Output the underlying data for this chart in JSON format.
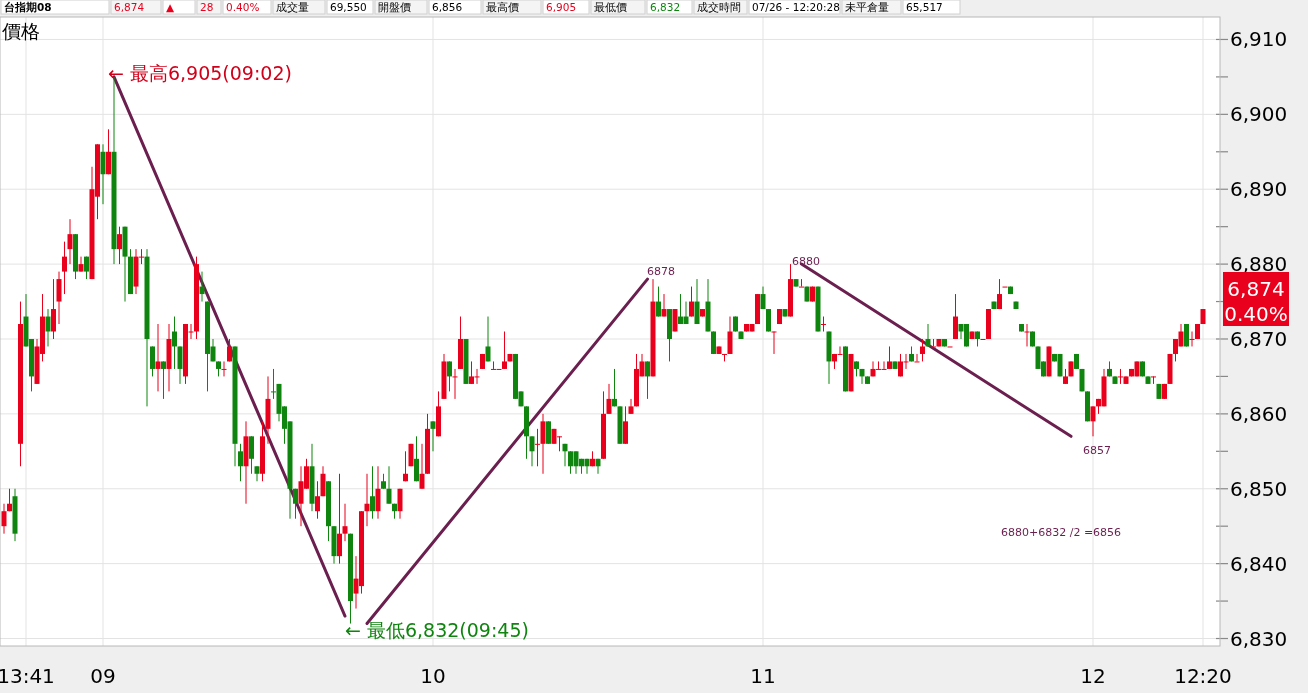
{
  "chart_data": {
    "type": "candlestick",
    "ylabel": "價格",
    "categories": [
      null,
      null,
      null,
      null,
      "13:41",
      null,
      null,
      null,
      null,
      null,
      null,
      null,
      null,
      null,
      null,
      null,
      null,
      null,
      "09",
      null,
      null,
      null,
      null,
      null,
      null,
      null,
      null,
      null,
      null,
      null,
      null,
      null,
      null,
      null,
      null,
      null,
      null,
      null,
      null,
      null,
      null,
      null,
      null,
      null,
      null,
      null,
      null,
      null,
      null,
      null,
      null,
      null,
      null,
      null,
      null,
      null,
      null,
      null,
      null,
      null,
      null,
      null,
      null,
      null,
      null,
      null,
      null,
      null,
      null,
      null,
      null,
      null,
      null,
      null,
      null,
      null,
      null,
      null,
      "10",
      null,
      null,
      null,
      null,
      null,
      null,
      null,
      null,
      null,
      null,
      null,
      null,
      null,
      null,
      null,
      null,
      null,
      null,
      null,
      null,
      null,
      null,
      null,
      null,
      null,
      null,
      null,
      null,
      null,
      null,
      null,
      null,
      null,
      null,
      null,
      null,
      null,
      null,
      null,
      null,
      null,
      null,
      null,
      null,
      null,
      null,
      null,
      null,
      null,
      null,
      null,
      null,
      null,
      null,
      null,
      null,
      null,
      null,
      null,
      "11",
      null,
      null,
      null,
      null,
      null,
      null,
      null,
      null,
      null,
      null,
      null,
      null,
      null,
      null,
      null,
      null,
      null,
      null,
      null,
      null,
      null,
      null,
      null,
      null,
      null,
      null,
      null,
      null,
      null,
      null,
      null,
      null,
      null,
      null,
      null,
      null,
      null,
      null,
      null,
      null,
      null,
      null,
      null,
      null,
      null,
      null,
      null,
      null,
      null,
      null,
      null,
      null,
      null,
      null,
      null,
      null,
      null,
      null,
      null,
      "12",
      null,
      null,
      null,
      null,
      null,
      null,
      null,
      null,
      null,
      null,
      null,
      null,
      null,
      null,
      null,
      null,
      null,
      null,
      null,
      "12:20"
    ],
    "ohlc": [
      [
        6845,
        6848,
        6844,
        6847
      ],
      [
        6847,
        6850,
        6847,
        6848
      ],
      [
        6849,
        6850,
        6843,
        6844
      ],
      [
        6856,
        6875,
        6853,
        6872
      ],
      [
        6873,
        6876,
        6869,
        6869
      ],
      [
        6870,
        6870,
        6863,
        6865
      ],
      [
        6864,
        6870,
        6864,
        6869
      ],
      [
        6868,
        6876,
        6867,
        6873
      ],
      [
        6873,
        6874,
        6869,
        6871
      ],
      [
        6871,
        6878,
        6870,
        6874
      ],
      [
        6875,
        6879,
        6872,
        6878
      ],
      [
        6879,
        6883,
        6876,
        6881
      ],
      [
        6882,
        6886,
        6880,
        6884
      ],
      [
        6884,
        6884,
        6878,
        6879
      ],
      [
        6879,
        6881,
        6879,
        6880
      ],
      [
        6881,
        6881,
        6878,
        6879
      ],
      [
        6878,
        6893,
        6878,
        6890
      ],
      [
        6889,
        6896,
        6886,
        6896
      ],
      [
        6895,
        6896,
        6888,
        6892
      ],
      [
        6892,
        6898,
        6892,
        6895
      ],
      [
        6895,
        6905,
        6880,
        6882
      ],
      [
        6882,
        6885,
        6880,
        6884
      ],
      [
        6885,
        6885,
        6875,
        6881
      ],
      [
        6881,
        6882,
        6876,
        6876
      ],
      [
        6877,
        6882,
        6876,
        6881
      ],
      [
        6881,
        6882,
        6880,
        6881
      ],
      [
        6881,
        6882,
        6861,
        6870
      ],
      [
        6869,
        6869,
        6865,
        6866
      ],
      [
        6866,
        6872,
        6863,
        6867
      ],
      [
        6867,
        6867,
        6862,
        6866
      ],
      [
        6866,
        6872,
        6863,
        6870
      ],
      [
        6871,
        6873,
        6866,
        6869
      ],
      [
        6869,
        6869,
        6864,
        6866
      ],
      [
        6865,
        6872,
        6864,
        6872
      ],
      [
        6871,
        6872,
        6870,
        6871
      ],
      [
        6871,
        6881,
        6870,
        6880
      ],
      [
        6877,
        6879,
        6875,
        6876
      ],
      [
        6875,
        6875,
        6863,
        6868
      ],
      [
        6869,
        6870,
        6867,
        6867
      ],
      [
        6867,
        6867,
        6865,
        6866
      ],
      [
        6866,
        6867,
        6865,
        6866
      ],
      [
        6867,
        6870,
        6867,
        6869
      ],
      [
        6869,
        6869,
        6853,
        6856
      ],
      [
        6855,
        6856,
        6851,
        6853
      ],
      [
        6853,
        6859,
        6848,
        6857
      ],
      [
        6857,
        6857,
        6852,
        6854
      ],
      [
        6853,
        6853,
        6851,
        6852
      ],
      [
        6852,
        6859,
        6851,
        6857
      ],
      [
        6858,
        6865,
        6856,
        6862
      ],
      [
        6863,
        6866,
        6862,
        6863
      ],
      [
        6864,
        6864,
        6859,
        6860
      ],
      [
        6861,
        6861,
        6856,
        6858
      ],
      [
        6859,
        6859,
        6846,
        6850
      ],
      [
        6850,
        6850,
        6846,
        6848
      ],
      [
        6848,
        6853,
        6845,
        6851
      ],
      [
        6850,
        6854,
        6850,
        6853
      ],
      [
        6853,
        6856,
        6847,
        6848
      ],
      [
        6847,
        6851,
        6846,
        6849
      ],
      [
        6849,
        6853,
        6849,
        6852
      ],
      [
        6851,
        6851,
        6843,
        6845
      ],
      [
        6845,
        6845,
        6840,
        6841
      ],
      [
        6841,
        6852,
        6840,
        6844
      ],
      [
        6844,
        6848,
        6843,
        6845
      ],
      [
        6844,
        6844,
        6832,
        6835
      ],
      [
        6836,
        6841,
        6834,
        6838
      ],
      [
        6837,
        6847,
        6836,
        6847
      ],
      [
        6847,
        6852,
        6845,
        6848
      ],
      [
        6849,
        6853,
        6846,
        6847
      ],
      [
        6847,
        6853,
        6846,
        6850
      ],
      [
        6851,
        6852,
        6850,
        6850
      ],
      [
        6850,
        6853,
        6848,
        6848
      ],
      [
        6848,
        6848,
        6846,
        6847
      ],
      [
        6847,
        6850,
        6846,
        6850
      ],
      [
        6851,
        6855,
        6851,
        6852
      ],
      [
        6853,
        6856,
        6853,
        6856
      ],
      [
        6854,
        6857,
        6851,
        6851
      ],
      [
        6850,
        6856,
        6850,
        6852
      ],
      [
        6852,
        6860,
        6852,
        6858
      ],
      [
        6859,
        6859,
        6855,
        6858
      ],
      [
        6857,
        6863,
        6857,
        6861
      ],
      [
        6862,
        6868,
        6862,
        6867
      ],
      [
        6867,
        6867,
        6863,
        6865
      ],
      [
        6865,
        6866,
        6862,
        6865
      ],
      [
        6866,
        6873,
        6866,
        6870
      ],
      [
        6870,
        6870,
        6864,
        6864
      ],
      [
        6864,
        6867,
        6864,
        6865
      ],
      [
        6865,
        6866,
        6864,
        6865
      ],
      [
        6866,
        6868,
        6866,
        6868
      ],
      [
        6869,
        6873,
        6867,
        6867
      ],
      [
        6866,
        6867,
        6866,
        6866
      ],
      [
        6866,
        6866,
        6866,
        6866
      ],
      [
        6866,
        6871,
        6866,
        6867
      ],
      [
        6867,
        6868,
        6867,
        6868
      ],
      [
        6868,
        6868,
        6862,
        6862
      ],
      [
        6863,
        6863,
        6861,
        6861
      ],
      [
        6861,
        6861,
        6854,
        6857
      ],
      [
        6857,
        6857,
        6853,
        6855
      ],
      [
        6856,
        6858,
        6853,
        6856
      ],
      [
        6856,
        6860,
        6852,
        6859
      ],
      [
        6859,
        6859,
        6856,
        6856
      ],
      [
        6856,
        6858,
        6856,
        6858
      ],
      [
        6857,
        6857,
        6855,
        6857
      ],
      [
        6856,
        6856,
        6853,
        6855
      ],
      [
        6855,
        6855,
        6852,
        6853
      ],
      [
        6855,
        6855,
        6852,
        6853
      ],
      [
        6854,
        6854,
        6852,
        6853
      ],
      [
        6854,
        6854,
        6852,
        6853
      ],
      [
        6853,
        6855,
        6853,
        6854
      ],
      [
        6854,
        6854,
        6852,
        6853
      ],
      [
        6854,
        6863,
        6854,
        6860
      ],
      [
        6860,
        6864,
        6860,
        6862
      ],
      [
        6862,
        6866,
        6861,
        6861
      ],
      [
        6861,
        6861,
        6856,
        6856
      ],
      [
        6856,
        6861,
        6856,
        6859
      ],
      [
        6860,
        6862,
        6860,
        6861
      ],
      [
        6861,
        6868,
        6861,
        6866
      ],
      [
        6865,
        6868,
        6865,
        6867
      ],
      [
        6867,
        6867,
        6862,
        6865
      ],
      [
        6865,
        6878,
        6865,
        6875
      ],
      [
        6875,
        6877,
        6873,
        6873
      ],
      [
        6873,
        6876,
        6873,
        6874
      ],
      [
        6874,
        6874,
        6867,
        6870
      ],
      [
        6871,
        6874,
        6871,
        6874
      ],
      [
        6873,
        6876,
        6872,
        6872
      ],
      [
        6873,
        6875,
        6872,
        6872
      ],
      [
        6873,
        6877,
        6873,
        6875
      ],
      [
        6875,
        6878,
        6872,
        6872
      ],
      [
        6873,
        6874,
        6873,
        6874
      ],
      [
        6875,
        6878,
        6871,
        6871
      ],
      [
        6871,
        6871,
        6868,
        6868
      ],
      [
        6868,
        6869,
        6868,
        6869
      ],
      [
        6868,
        6868,
        6867,
        6868
      ],
      [
        6868,
        6873,
        6868,
        6871
      ],
      [
        6873,
        6873,
        6871,
        6871
      ],
      [
        6871,
        6871,
        6870,
        6870
      ],
      [
        6871,
        6872,
        6871,
        6872
      ],
      [
        6871,
        6872,
        6871,
        6872
      ],
      [
        6872,
        6876,
        6872,
        6876
      ],
      [
        6876,
        6877,
        6874,
        6874
      ],
      [
        6874,
        6874,
        6871,
        6871
      ],
      [
        6871,
        6871,
        6868,
        6871
      ],
      [
        6872,
        6874,
        6872,
        6874
      ],
      [
        6874,
        6874,
        6873,
        6873
      ],
      [
        6873,
        6880,
        6873,
        6878
      ],
      [
        6878,
        6878,
        6877,
        6877
      ],
      [
        6877,
        6878,
        6877,
        6877
      ],
      [
        6877,
        6877,
        6875,
        6875
      ],
      [
        6875,
        6877,
        6875,
        6877
      ],
      [
        6877,
        6877,
        6871,
        6871
      ],
      [
        6872,
        6873,
        6871,
        6872
      ],
      [
        6871,
        6871,
        6864,
        6867
      ],
      [
        6867,
        6868,
        6866,
        6868
      ],
      [
        6868,
        6869,
        6868,
        6868
      ],
      [
        6869,
        6869,
        6863,
        6863
      ],
      [
        6863,
        6868,
        6863,
        6868
      ],
      [
        6867,
        6867,
        6865,
        6866
      ],
      [
        6866,
        6866,
        6864,
        6865
      ],
      [
        6865,
        6865,
        6864,
        6864
      ],
      [
        6865,
        6867,
        6865,
        6866
      ],
      [
        6866,
        6867,
        6866,
        6866
      ],
      [
        6866,
        6867,
        6866,
        6866
      ],
      [
        6866,
        6869,
        6866,
        6867
      ],
      [
        6867,
        6867,
        6866,
        6866
      ],
      [
        6865,
        6868,
        6865,
        6867
      ],
      [
        6867,
        6868,
        6866,
        6867
      ],
      [
        6868,
        6869,
        6867,
        6867
      ],
      [
        6867,
        6868,
        6867,
        6867
      ],
      [
        6868,
        6870,
        6867,
        6869
      ],
      [
        6870,
        6872,
        6869,
        6869
      ],
      [
        6869,
        6870,
        6869,
        6869
      ],
      [
        6869,
        6870,
        6869,
        6870
      ],
      [
        6870,
        6870,
        6869,
        6869
      ],
      [
        6869,
        6869,
        6869,
        6869
      ],
      [
        6870,
        6876,
        6870,
        6873
      ],
      [
        6872,
        6872,
        6870,
        6871
      ],
      [
        6872,
        6872,
        6869,
        6869
      ],
      [
        6870,
        6871,
        6870,
        6871
      ],
      [
        6871,
        6871,
        6869,
        6870
      ],
      [
        6870,
        6870,
        6870,
        6870
      ],
      [
        6870,
        6874,
        6870,
        6874
      ],
      [
        6875,
        6875,
        6874,
        6874
      ],
      [
        6874,
        6878,
        6874,
        6876
      ],
      [
        6877,
        6877,
        6877,
        6877
      ],
      [
        6877,
        6877,
        6876,
        6876
      ],
      [
        6875,
        6875,
        6874,
        6874
      ],
      [
        6872,
        6872,
        6871,
        6871
      ],
      [
        6871,
        6872,
        6869,
        6871
      ],
      [
        6871,
        6871,
        6869,
        6869
      ],
      [
        6869,
        6869,
        6866,
        6866
      ],
      [
        6867,
        6867,
        6865,
        6865
      ],
      [
        6865,
        6869,
        6865,
        6869
      ],
      [
        6868,
        6868,
        6867,
        6867
      ],
      [
        6868,
        6868,
        6865,
        6865
      ],
      [
        6864,
        6866,
        6864,
        6865
      ],
      [
        6865,
        6867,
        6865,
        6867
      ],
      [
        6868,
        6868,
        6866,
        6866
      ],
      [
        6866,
        6866,
        6863,
        6863
      ],
      [
        6863,
        6863,
        6859,
        6859
      ],
      [
        6859,
        6861,
        6857,
        6861
      ],
      [
        6861,
        6862,
        6860,
        6862
      ],
      [
        6861,
        6866,
        6861,
        6865
      ],
      [
        6866,
        6867,
        6865,
        6865
      ],
      [
        6865,
        6865,
        6864,
        6864
      ],
      [
        6865,
        6866,
        6864,
        6865
      ],
      [
        6864,
        6865,
        6864,
        6865
      ],
      [
        6865,
        6866,
        6865,
        6866
      ],
      [
        6865,
        6867,
        6865,
        6867
      ],
      [
        6867,
        6867,
        6865,
        6865
      ],
      [
        6865,
        6865,
        6864,
        6864
      ],
      [
        6865,
        6865,
        6864,
        6865
      ],
      [
        6864,
        6864,
        6862,
        6862
      ],
      [
        6862,
        6864,
        6862,
        6864
      ],
      [
        6864,
        6868,
        6864,
        6868
      ],
      [
        6868,
        6870,
        6867,
        6870
      ],
      [
        6869,
        6872,
        6869,
        6871
      ],
      [
        6872,
        6872,
        6869,
        6869
      ],
      [
        6870,
        6871,
        6869,
        6870
      ],
      [
        6870,
        6872,
        6870,
        6872
      ],
      [
        6872,
        6874,
        6872,
        6874
      ]
    ],
    "colors": [
      "#e8001c",
      "#e8001c",
      "#0f850f",
      "#e8001c",
      "#0f850f",
      "#0f850f",
      "#e8001c",
      "#e8001c",
      "#0f850f",
      "#e8001c",
      "#e8001c",
      "#e8001c",
      "#e8001c",
      "#0f850f",
      "#e8001c",
      "#0f850f",
      "#e8001c",
      "#e8001c",
      "#0f850f",
      "#e8001c",
      "#0f850f",
      "#e8001c",
      "#0f850f",
      "#0f850f",
      "#e8001c",
      "#e8001c",
      "#0f850f",
      "#0f850f",
      "#e8001c",
      "#0f850f",
      "#e8001c",
      "#0f850f",
      "#0f850f",
      "#e8001c",
      "#e8001c",
      "#e8001c",
      "#0f850f",
      "#0f850f",
      "#0f850f",
      "#0f850f",
      "#e8001c",
      "#e8001c",
      "#0f850f",
      "#0f850f",
      "#e8001c",
      "#0f850f",
      "#0f850f",
      "#e8001c",
      "#e8001c",
      "#0f850f",
      "#0f850f",
      "#0f850f",
      "#0f850f",
      "#0f850f",
      "#e8001c",
      "#e8001c",
      "#0f850f",
      "#e8001c",
      "#e8001c",
      "#0f850f",
      "#0f850f",
      "#e8001c",
      "#e8001c",
      "#0f850f",
      "#e8001c",
      "#e8001c",
      "#e8001c",
      "#0f850f",
      "#e8001c",
      "#0f850f",
      "#0f850f",
      "#0f850f",
      "#e8001c",
      "#e8001c",
      "#e8001c",
      "#0f850f",
      "#e8001c",
      "#e8001c",
      "#0f850f",
      "#e8001c",
      "#e8001c",
      "#0f850f",
      "#e8001c",
      "#e8001c",
      "#0f850f",
      "#e8001c",
      "#e8001c",
      "#e8001c",
      "#0f850f",
      "#e8001c",
      "#e8001c",
      "#e8001c",
      "#e8001c",
      "#0f850f",
      "#0f850f",
      "#0f850f",
      "#0f850f",
      "#e8001c",
      "#e8001c",
      "#0f850f",
      "#e8001c",
      "#e8001c",
      "#0f850f",
      "#0f850f",
      "#0f850f",
      "#0f850f",
      "#0f850f",
      "#e8001c",
      "#0f850f",
      "#e8001c",
      "#e8001c",
      "#0f850f",
      "#0f850f",
      "#e8001c",
      "#e8001c",
      "#e8001c",
      "#e8001c",
      "#0f850f",
      "#e8001c",
      "#0f850f",
      "#e8001c",
      "#0f850f",
      "#e8001c",
      "#0f850f",
      "#0f850f",
      "#e8001c",
      "#0f850f",
      "#e8001c",
      "#0f850f",
      "#0f850f",
      "#e8001c",
      "#e8001c",
      "#e8001c",
      "#0f850f",
      "#0f850f",
      "#e8001c",
      "#e8001c",
      "#e8001c",
      "#0f850f",
      "#0f850f",
      "#e8001c",
      "#e8001c",
      "#0f850f",
      "#e8001c",
      "#0f850f",
      "#e8001c",
      "#0f850f",
      "#e8001c",
      "#0f850f",
      "#e8001c",
      "#0f850f",
      "#e8001c",
      "#e8001c",
      "#0f850f",
      "#e8001c",
      "#0f850f",
      "#0f850f",
      "#0f850f",
      "#e8001c",
      "#e8001c",
      "#e8001c",
      "#e8001c",
      "#0f850f",
      "#e8001c",
      "#e8001c",
      "#0f850f",
      "#e8001c",
      "#e8001c",
      "#0f850f",
      "#e8001c",
      "#e8001c",
      "#0f850f",
      "#e8001c",
      "#e8001c",
      "#0f850f",
      "#0f850f",
      "#e8001c",
      "#0f850f",
      "#e8001c",
      "#e8001c",
      "#0f850f",
      "#e8001c",
      "#e8001c",
      "#0f850f",
      "#0f850f",
      "#0f850f",
      "#e8001c",
      "#0f850f",
      "#0f850f",
      "#0f850f",
      "#e8001c",
      "#0f850f",
      "#0f850f",
      "#e8001c",
      "#e8001c",
      "#0f850f",
      "#0f850f",
      "#0f850f",
      "#e8001c",
      "#e8001c",
      "#e8001c",
      "#0f850f",
      "#0f850f",
      "#e8001c",
      "#e8001c",
      "#e8001c",
      "#e8001c",
      "#0f850f",
      "#0f850f",
      "#e8001c",
      "#0f850f",
      "#e8001c",
      "#e8001c",
      "#e8001c",
      "#e8001c",
      "#0f850f",
      "#e8001c",
      "#e8001c",
      "#e8001c"
    ],
    "series": [
      {
        "type": "line",
        "color": "#6b1f4f",
        "values": [
          null,
          null,
          null,
          null,
          null,
          null,
          null,
          null,
          null,
          null,
          null,
          null,
          null,
          null,
          null,
          null,
          null,
          null,
          null,
          null,
          6905,
          null,
          null,
          null,
          null,
          null,
          null,
          null,
          null,
          null,
          null,
          null,
          null,
          null,
          null,
          null,
          null,
          null,
          null,
          null,
          null,
          null,
          null,
          null,
          null,
          null,
          null,
          null,
          null,
          null,
          null,
          null,
          null,
          null,
          null,
          null,
          null,
          null,
          null,
          null,
          null,
          null,
          6833,
          null,
          null,
          null,
          null,
          null,
          null,
          null,
          null,
          null,
          null,
          null,
          null,
          null,
          null,
          null,
          null,
          null,
          null,
          null,
          null,
          null,
          null,
          null,
          null,
          null,
          null,
          null,
          null,
          null,
          null,
          null,
          null,
          null,
          null,
          null,
          null,
          null,
          null,
          null,
          null,
          null,
          null,
          null,
          null,
          null,
          null,
          null,
          null,
          null,
          null,
          null,
          null,
          null,
          null,
          null,
          null,
          null,
          null,
          null,
          null,
          null,
          null,
          null,
          null,
          null,
          null,
          null,
          null,
          null,
          null,
          null,
          null,
          null,
          null,
          null,
          null,
          null,
          null,
          null,
          null,
          null,
          null,
          null,
          null,
          null,
          null,
          null,
          null,
          null,
          null,
          null,
          null,
          null,
          null,
          null,
          null,
          null,
          null,
          null,
          null,
          null,
          null,
          null,
          null,
          null,
          null,
          null,
          null,
          null,
          null,
          null,
          null,
          null,
          null,
          null,
          null,
          null,
          null,
          null,
          null,
          null,
          null,
          null,
          null,
          null,
          null,
          null,
          null,
          null,
          null,
          null,
          null,
          null,
          null,
          null,
          null,
          null,
          null,
          null,
          null,
          null,
          null,
          null,
          null,
          null,
          null,
          null,
          null,
          null,
          null,
          null,
          null,
          null,
          null,
          null,
          null
        ]
      },
      {
        "type": "line",
        "color": "#6b1f4f",
        "values": [
          null,
          null,
          null,
          null,
          null,
          null,
          null,
          null,
          null,
          null,
          null,
          null,
          null,
          null,
          null,
          null,
          null,
          null,
          null,
          null,
          null,
          null,
          null,
          null,
          null,
          null,
          null,
          null,
          null,
          null,
          null,
          null,
          null,
          null,
          null,
          null,
          null,
          null,
          null,
          null,
          null,
          null,
          null,
          null,
          null,
          null,
          null,
          null,
          null,
          null,
          null,
          null,
          null,
          null,
          null,
          null,
          null,
          null,
          null,
          null,
          null,
          null,
          null,
          null,
          null,
          null,
          6832,
          null,
          null,
          null,
          null,
          null,
          null,
          null,
          null,
          null,
          null,
          null,
          null,
          null,
          null,
          null,
          null,
          null,
          null,
          null,
          null,
          null,
          null,
          null,
          null,
          null,
          null,
          null,
          null,
          null,
          null,
          null,
          null,
          null,
          null,
          null,
          null,
          null,
          null,
          null,
          null,
          null,
          null,
          null,
          null,
          null,
          null,
          null,
          null,
          null,
          null,
          6878,
          null,
          null,
          null,
          null,
          null,
          null,
          null,
          null,
          null,
          null,
          null,
          null,
          null,
          null,
          null,
          null,
          null,
          null,
          null,
          null,
          null,
          null,
          null,
          null,
          null,
          null,
          null,
          null,
          null,
          null,
          null,
          null,
          null,
          null,
          null,
          null,
          null,
          null,
          null,
          null,
          null,
          null,
          null,
          null,
          null,
          null,
          null,
          null,
          null,
          null,
          null,
          null,
          null,
          null,
          null,
          null,
          null,
          null,
          null,
          null,
          null,
          null,
          null,
          null,
          null,
          null,
          null,
          null,
          null,
          null,
          null,
          null,
          null,
          null,
          null,
          null,
          null,
          null,
          null,
          null,
          null,
          null,
          null,
          null,
          null,
          null,
          null,
          null,
          null,
          null,
          null,
          null,
          null,
          null,
          null,
          null,
          null,
          null,
          null,
          null,
          null
        ]
      },
      {
        "type": "line",
        "color": "#6b1f4f",
        "values": [
          null,
          null,
          null,
          null,
          null,
          null,
          null,
          null,
          null,
          null,
          null,
          null,
          null,
          null,
          null,
          null,
          null,
          null,
          null,
          null,
          null,
          null,
          null,
          null,
          null,
          null,
          null,
          null,
          null,
          null,
          null,
          null,
          null,
          null,
          null,
          null,
          null,
          null,
          null,
          null,
          null,
          null,
          null,
          null,
          null,
          null,
          null,
          null,
          null,
          null,
          null,
          null,
          null,
          null,
          null,
          null,
          null,
          null,
          null,
          null,
          null,
          null,
          null,
          null,
          null,
          null,
          null,
          null,
          null,
          null,
          null,
          null,
          null,
          null,
          null,
          null,
          null,
          null,
          null,
          null,
          null,
          null,
          null,
          null,
          null,
          null,
          null,
          null,
          null,
          null,
          null,
          null,
          null,
          null,
          null,
          null,
          null,
          null,
          null,
          null,
          null,
          null,
          null,
          null,
          null,
          null,
          null,
          null,
          null,
          null,
          null,
          null,
          null,
          null,
          null,
          null,
          null,
          null,
          null,
          null,
          null,
          null,
          null,
          null,
          null,
          null,
          null,
          null,
          null,
          null,
          null,
          null,
          null,
          null,
          null,
          null,
          null,
          null,
          null,
          null,
          null,
          null,
          null,
          null,
          null,
          6880,
          null,
          null,
          null,
          null,
          null,
          null,
          null,
          null,
          null,
          null,
          null,
          null,
          null,
          null,
          null,
          null,
          null,
          null,
          null,
          null,
          null,
          null,
          null,
          null,
          null,
          null,
          null,
          null,
          null,
          null,
          null,
          null,
          null,
          null,
          null,
          null,
          null,
          null,
          null,
          null,
          null,
          null,
          null,
          null,
          null,
          null,
          null,
          null,
          6857,
          null,
          null,
          null,
          null,
          null,
          null,
          null,
          null,
          null,
          null,
          null,
          null,
          null,
          null,
          null,
          null,
          null,
          null,
          null,
          null,
          null,
          null,
          null,
          null
        ]
      }
    ],
    "ylim": [
      6829,
      6913
    ],
    "yticks": [
      {
        "value": 6830,
        "label": "6,830"
      },
      {
        "value": 6835,
        "label": null
      },
      {
        "value": 6840,
        "label": "6,840"
      },
      {
        "value": 6845,
        "label": null
      },
      {
        "value": 6850,
        "label": "6,850"
      },
      {
        "value": 6855,
        "label": null
      },
      {
        "value": 6860,
        "label": "6,860"
      },
      {
        "value": 6865,
        "label": null
      },
      {
        "value": 6870,
        "label": "6,870"
      },
      {
        "value": 6875,
        "label": null
      },
      {
        "value": 6880,
        "label": "6,880"
      },
      {
        "value": 6885,
        "label": null
      },
      {
        "value": 6890,
        "label": "6,890"
      },
      {
        "value": 6895,
        "label": null
      },
      {
        "value": 6900,
        "label": "6,900"
      },
      {
        "value": 6905,
        "label": null
      },
      {
        "value": 6910,
        "label": "6,910"
      }
    ],
    "grid": true,
    "annotations": [
      "台指期08",
      "6,874",
      "▲",
      "28",
      "0.40%",
      "成交量",
      "69,550",
      "開盤價",
      "6,856",
      "最高價",
      "6,905",
      "最低價",
      "6,832",
      "成交時間",
      "07/26 - 12:20:28",
      "未平倉量",
      "65,517",
      "← 最高6,905(09:02)",
      "← 最低6,832(09:45)",
      "6878",
      "6880",
      "6857",
      "6880+6832 /2 =6856",
      "6,874",
      "0.40%"
    ]
  }
}
